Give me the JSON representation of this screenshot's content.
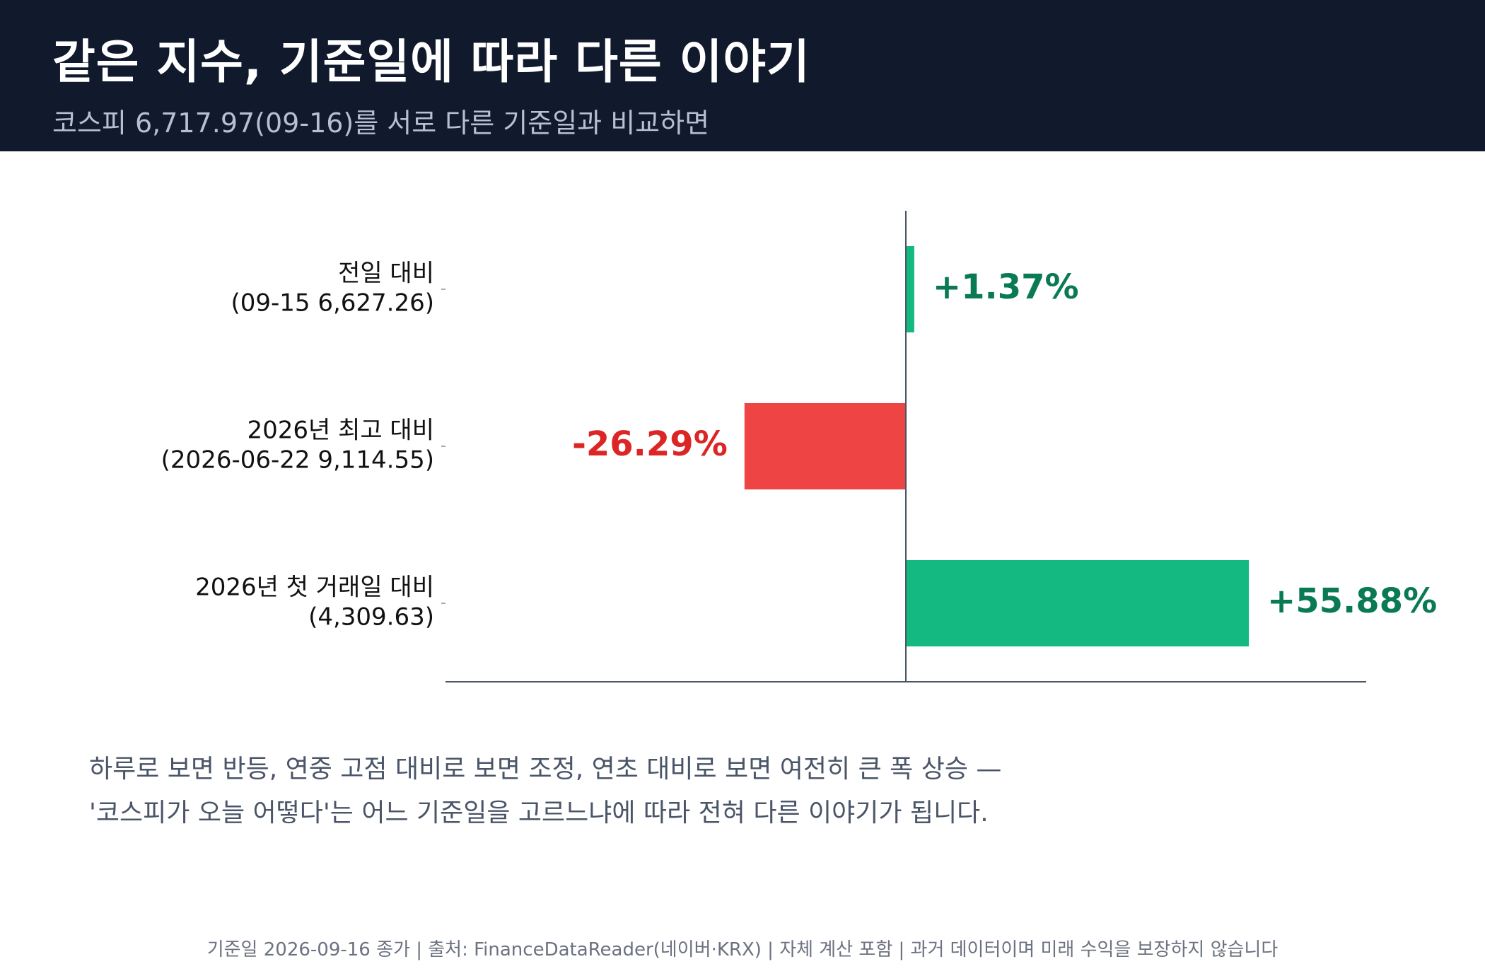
{
  "header": {
    "title": "같은 지수, 기준일에 따라 다른 이야기",
    "subtitle": "코스피 6,717.97(09-16)를 서로 다른 기준일과 비교하면"
  },
  "chart_data": {
    "type": "bar",
    "orientation": "horizontal",
    "categories": [
      [
        "전일 대비",
        "(09-15 6,627.26)"
      ],
      [
        "2026년 최고 대비",
        "(2026-06-22 9,114.55)"
      ],
      [
        "2026년 첫 거래일 대비",
        "(4,309.63)"
      ]
    ],
    "values": [
      1.37,
      -26.29,
      55.88
    ],
    "value_labels": [
      "+1.37%",
      "-26.29%",
      "+55.88%"
    ],
    "xlim": [
      -75,
      75
    ],
    "grid": false,
    "colors": {
      "positive_bar": "#13b981",
      "negative_bar": "#ef4444",
      "positive_label": "#0a7a55",
      "negative_label": "#dc2626",
      "axis": "#4b5563"
    }
  },
  "notes": {
    "line1": "하루로 보면 반등, 연중 고점 대비로 보면 조정, 연초 대비로 보면 여전히 큰 폭 상승 —",
    "line2": "'코스피가 오늘 어떻다'는 어느 기준일을 고르느냐에 따라 전혀 다른 이야기가 됩니다."
  },
  "footer": "기준일 2026-09-16 종가 | 출처: FinanceDataReader(네이버·KRX) | 자체 계산 포함 | 과거 데이터이며 미래 수익을 보장하지 않습니다"
}
